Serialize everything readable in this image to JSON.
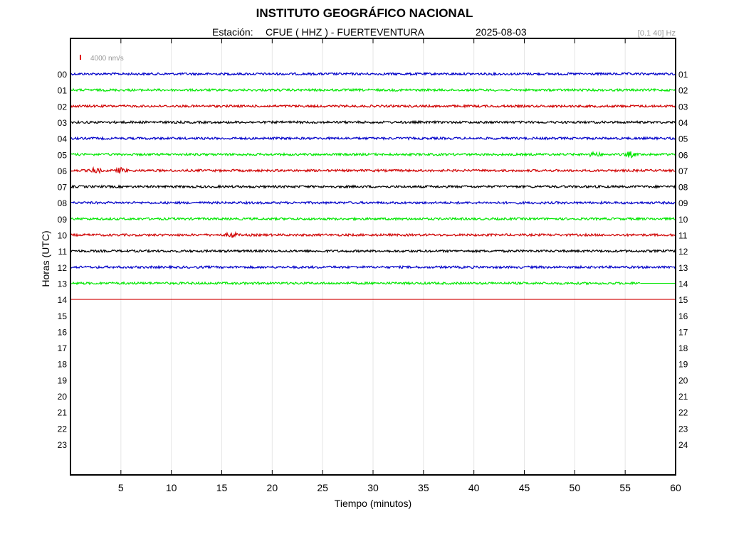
{
  "header": {
    "title": "INSTITUTO GEOGRÁFICO NACIONAL",
    "station_prefix": "Estación:",
    "station": "CFUE ( HHZ ) - FUERTEVENTURA",
    "date": "2025-08-03",
    "filter_band": "[0.1 40] Hz"
  },
  "chart_data": {
    "type": "line",
    "title": "INSTITUTO GEOGRÁFICO NACIONAL",
    "xlabel": "Tiempo (minutos)",
    "ylabel": "Horas (UTC)",
    "xlim": [
      0,
      60
    ],
    "x_ticks": [
      5,
      10,
      15,
      20,
      25,
      30,
      35,
      40,
      45,
      50,
      55,
      60
    ],
    "left_hour_labels": [
      "00",
      "01",
      "02",
      "03",
      "04",
      "05",
      "06",
      "07",
      "08",
      "09",
      "10",
      "11",
      "12",
      "13",
      "14",
      "15",
      "16",
      "17",
      "18",
      "19",
      "20",
      "21",
      "22",
      "23"
    ],
    "right_hour_labels": [
      "01",
      "02",
      "03",
      "04",
      "05",
      "06",
      "07",
      "08",
      "09",
      "10",
      "11",
      "12",
      "13",
      "14",
      "15",
      "16",
      "17",
      "18",
      "19",
      "20",
      "21",
      "22",
      "23",
      "24"
    ],
    "scale_label": "4000 nm/s",
    "grid": "vertical",
    "color_cycle": [
      "#0000c8",
      "#00e600",
      "#d00000",
      "#000000"
    ],
    "traces": [
      {
        "hour": "00",
        "color": "#0000c8",
        "end_minute": 60,
        "amplitude": "low"
      },
      {
        "hour": "01",
        "color": "#00e600",
        "end_minute": 60,
        "amplitude": "low"
      },
      {
        "hour": "02",
        "color": "#d00000",
        "end_minute": 60,
        "amplitude": "low"
      },
      {
        "hour": "03",
        "color": "#000000",
        "end_minute": 60,
        "amplitude": "low"
      },
      {
        "hour": "04",
        "color": "#0000c8",
        "end_minute": 60,
        "amplitude": "low"
      },
      {
        "hour": "05",
        "color": "#00e600",
        "end_minute": 60,
        "amplitude": "low",
        "events_minute": [
          52,
          55.5
        ]
      },
      {
        "hour": "06",
        "color": "#d00000",
        "end_minute": 60,
        "amplitude": "low",
        "events_minute": [
          2.5,
          5
        ]
      },
      {
        "hour": "07",
        "color": "#000000",
        "end_minute": 60,
        "amplitude": "low"
      },
      {
        "hour": "08",
        "color": "#0000c8",
        "end_minute": 60,
        "amplitude": "low"
      },
      {
        "hour": "09",
        "color": "#00e600",
        "end_minute": 60,
        "amplitude": "low"
      },
      {
        "hour": "10",
        "color": "#d00000",
        "end_minute": 60,
        "amplitude": "low",
        "events_minute": [
          16
        ]
      },
      {
        "hour": "11",
        "color": "#000000",
        "end_minute": 60,
        "amplitude": "low"
      },
      {
        "hour": "12",
        "color": "#0000c8",
        "end_minute": 60,
        "amplitude": "low"
      },
      {
        "hour": "13",
        "color": "#00e600",
        "end_minute": 56.5,
        "amplitude": "low"
      },
      {
        "hour": "14",
        "color": "#d00000",
        "end_minute": 60,
        "amplitude": "flat"
      }
    ]
  }
}
